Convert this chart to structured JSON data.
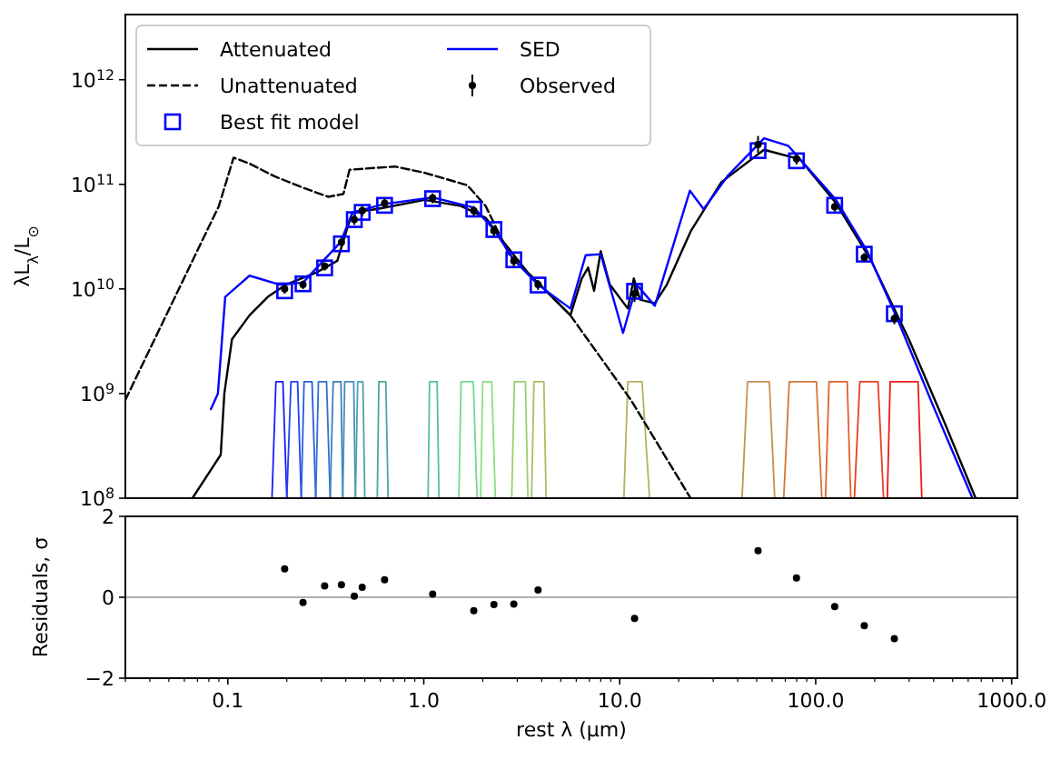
{
  "chart_data": [
    {
      "type": "line",
      "ylabel": "λL$_{λ}$/L$_{⊙}$",
      "log": "xy",
      "legend": "top left",
      "tick_labels": "y",
      "xlim": [
        0.03,
        1070
      ],
      "ylim": [
        100000000.0,
        4200000000000.0
      ],
      "yticks": [
        {
          "value": 100000000.0,
          "label": "10$^{8}$"
        },
        {
          "value": 1000000000.0,
          "label": "10$^{9}$"
        },
        {
          "value": 10000000000.0,
          "label": "10$^{10}$"
        },
        {
          "value": 100000000000.0,
          "label": "10$^{11}$"
        },
        {
          "value": 1000000000000.0,
          "label": "10$^{12}$"
        }
      ],
      "series": [
        {
          "name": "Attenuated",
          "color": "#000000",
          "line_style": "solid",
          "x": [
            0.066,
            0.092,
            0.096,
            0.105,
            0.129,
            0.16,
            0.198,
            0.282,
            0.362,
            0.403,
            0.433,
            0.575,
            1.01,
            1.55,
            2.07,
            2.56,
            3.4,
            4.2,
            5.6,
            6.4,
            6.9,
            7.4,
            8.0,
            8.9,
            11.0,
            11.8,
            12.7,
            15.1,
            17.4,
            23.1,
            33,
            54.5,
            83,
            127,
            192,
            299,
            458,
            655
          ],
          "values": [
            100000000.0,
            260000000.0,
            1000000000.0,
            3300000000.0,
            5600000000.0,
            8400000000.0,
            11000000000.0,
            14300000000.0,
            18600000000.0,
            36000000000.0,
            54000000000.0,
            58000000000.0,
            71000000000.0,
            62000000000.0,
            48000000000.0,
            28000000000.0,
            14300000000.0,
            9600000000.0,
            5600000000.0,
            12600000000.0,
            16000000000.0,
            9600000000.0,
            23000000000.0,
            11000000000.0,
            6500000000.0,
            12600000000.0,
            7900000000.0,
            7300000000.0,
            11000000000.0,
            36000000000.0,
            105000000000.0,
            214000000000.0,
            174000000000.0,
            66000000000.0,
            18600000000.0,
            3300000000.0,
            510000000.0,
            100000000.0
          ]
        },
        {
          "name": "Unattenuated",
          "color": "#000000",
          "line_style": "dashed",
          "x": [
            0.03,
            0.09,
            0.107,
            0.129,
            0.172,
            0.245,
            0.326,
            0.389,
            0.418,
            0.713,
            1.01,
            1.67,
            2.07,
            2.74,
            3.65,
            5.6,
            11.4,
            23
          ],
          "values": [
            870000000.0,
            62000000000.0,
            180000000000.0,
            158000000000.0,
            120000000000.0,
            92000000000.0,
            76000000000.0,
            81000000000.0,
            138000000000.0,
            148000000000.0,
            129000000000.0,
            98000000000.0,
            62000000000.0,
            21000000000.0,
            12600000000.0,
            5600000000.0,
            870000000.0,
            100000000.0
          ]
        },
        {
          "name": "Best fit model",
          "type": "scatter",
          "marker": "square",
          "color": "#0000ff",
          "x": [
            0.195,
            0.242,
            0.312,
            0.38,
            0.442,
            0.485,
            0.631,
            1.11,
            1.8,
            2.28,
            2.88,
            3.83,
            11.9,
            50.8,
            79.8,
            125,
            177,
            252
          ],
          "values": [
            9600000000.0,
            11200000000.0,
            15900000000.0,
            27000000000.0,
            46000000000.0,
            54000000000.0,
            63000000000.0,
            73000000000.0,
            58000000000.0,
            37000000000.0,
            19000000000.0,
            10900000000.0,
            9500000000.0,
            210000000000.0,
            168000000000.0,
            63000000000.0,
            21500000000.0,
            5800000000.0
          ]
        },
        {
          "name": "SED",
          "color": "#0000ff",
          "line_style": "solid",
          "x": [
            0.082,
            0.089,
            0.097,
            0.129,
            0.184,
            0.242,
            0.376,
            0.433,
            0.631,
            1.11,
            1.8,
            2.28,
            2.88,
            3.83,
            5.6,
            6.7,
            8.0,
            10.4,
            12.2,
            15.1,
            22.8,
            26.8,
            35.5,
            54.5,
            72.4,
            127,
            183,
            261,
            398,
            631
          ],
          "values": [
            710000000.0,
            1000000000.0,
            8400000000.0,
            13400000000.0,
            11000000000.0,
            11500000000.0,
            28000000000.0,
            54000000000.0,
            65000000000.0,
            75000000000.0,
            60000000000.0,
            37000000000.0,
            19000000000.0,
            11000000000.0,
            6500000000.0,
            21000000000.0,
            21500000000.0,
            3800000000.0,
            11000000000.0,
            6900000000.0,
            87000000000.0,
            58000000000.0,
            120000000000.0,
            276000000000.0,
            234000000000.0,
            71000000000.0,
            23000000000.0,
            5200000000.0,
            760000000.0,
            100000000.0
          ]
        },
        {
          "name": "Observed",
          "type": "scatter",
          "marker": "circle",
          "color": "#000000",
          "x": [
            0.195,
            0.242,
            0.312,
            0.38,
            0.442,
            0.485,
            0.631,
            1.11,
            1.8,
            2.28,
            2.88,
            3.83,
            11.9,
            50.8,
            79.8,
            125,
            177,
            252
          ],
          "values": [
            10000000000.0,
            11000000000.0,
            16500000000.0,
            28000000000.0,
            46000000000.0,
            56000000000.0,
            66000000000.0,
            74000000000.0,
            56000000000.0,
            36000000000.0,
            18500000000.0,
            11000000000.0,
            9000000000.0,
            240000000000.0,
            175000000000.0,
            61000000000.0,
            20000000000.0,
            5200000000.0
          ],
          "errors": [
            [
              9000000000.0,
              11000000000.0
            ],
            [
              10000000000.0,
              12000000000.0
            ],
            [
              15000000000.0,
              18000000000.0
            ],
            [
              25000000000.0,
              31000000000.0
            ],
            [
              41000000000.0,
              51000000000.0
            ],
            [
              50000000000.0,
              62000000000.0
            ],
            [
              59000000000.0,
              73000000000.0
            ],
            [
              66000000000.0,
              82000000000.0
            ],
            [
              50000000000.0,
              62000000000.0
            ],
            [
              32000000000.0,
              40000000000.0
            ],
            [
              16500000000.0,
              20500000000.0
            ],
            [
              9800000000.0,
              12200000000.0
            ],
            [
              7500000000.0,
              12000000000.0
            ],
            [
              200000000000.0,
              290000000000.0
            ],
            [
              155000000000.0,
              195000000000.0
            ],
            [
              55000000000.0,
              67000000000.0
            ],
            [
              18000000000.0,
              22000000000.0
            ],
            [
              4600000000.0,
              5800000000.0
            ]
          ]
        },
        {
          "color": "#1a1aff",
          "x": [
            0.168,
            0.176,
            0.191,
            0.2
          ],
          "values": [
            100000000.0,
            1300000000.0,
            1300000000.0,
            100000000.0
          ]
        },
        {
          "color": "#2040f0",
          "x": [
            0.2,
            0.21,
            0.227,
            0.237
          ],
          "values": [
            100000000.0,
            1300000000.0,
            1300000000.0,
            100000000.0
          ]
        },
        {
          "color": "#2a5ce0",
          "x": [
            0.237,
            0.245,
            0.269,
            0.281
          ],
          "values": [
            100000000.0,
            1300000000.0,
            1300000000.0,
            100000000.0
          ]
        },
        {
          "color": "#3070d0",
          "x": [
            0.281,
            0.29,
            0.319,
            0.333
          ],
          "values": [
            100000000.0,
            1300000000.0,
            1300000000.0,
            100000000.0
          ]
        },
        {
          "color": "#3a80c0",
          "x": [
            0.333,
            0.345,
            0.378,
            0.386
          ],
          "values": [
            100000000.0,
            1300000000.0,
            1300000000.0,
            100000000.0
          ]
        },
        {
          "color": "#4590b8",
          "x": [
            0.386,
            0.395,
            0.439,
            0.448
          ],
          "values": [
            100000000.0,
            1300000000.0,
            1300000000.0,
            100000000.0
          ]
        },
        {
          "color": "#50a0b0",
          "x": [
            0.448,
            0.46,
            0.489,
            0.5
          ],
          "values": [
            100000000.0,
            1300000000.0,
            1300000000.0,
            100000000.0
          ]
        },
        {
          "color": "#4aa8a0",
          "x": [
            0.579,
            0.59,
            0.64,
            0.658
          ],
          "values": [
            100000000.0,
            1300000000.0,
            1300000000.0,
            100000000.0
          ]
        },
        {
          "color": "#50c0a0",
          "x": [
            1.052,
            1.07,
            1.17,
            1.196
          ],
          "values": [
            100000000.0,
            1300000000.0,
            1300000000.0,
            100000000.0
          ]
        },
        {
          "color": "#70d890",
          "x": [
            1.51,
            1.55,
            1.79,
            1.87
          ],
          "values": [
            100000000.0,
            1300000000.0,
            1300000000.0,
            100000000.0
          ]
        },
        {
          "color": "#88e080",
          "x": [
            1.95,
            2.0,
            2.22,
            2.32
          ],
          "values": [
            100000000.0,
            1300000000.0,
            1300000000.0,
            100000000.0
          ]
        },
        {
          "color": "#98d070",
          "x": [
            2.81,
            2.9,
            3.3,
            3.4
          ],
          "values": [
            100000000.0,
            1300000000.0,
            1300000000.0,
            100000000.0
          ]
        },
        {
          "color": "#a8c060",
          "x": [
            3.55,
            3.65,
            4.1,
            4.21
          ],
          "values": [
            100000000.0,
            1300000000.0,
            1300000000.0,
            100000000.0
          ]
        },
        {
          "color": "#b8b060",
          "x": [
            10.5,
            11.0,
            13.0,
            14.2
          ],
          "values": [
            100000000.0,
            1300000000.0,
            1300000000.0,
            100000000.0
          ]
        },
        {
          "color": "#c89050",
          "x": [
            42.1,
            44.9,
            58.0,
            61.8
          ],
          "values": [
            100000000.0,
            1300000000.0,
            1300000000.0,
            100000000.0
          ]
        },
        {
          "color": "#d07838",
          "x": [
            68.7,
            73.3,
            100.9,
            107.5
          ],
          "values": [
            100000000.0,
            1300000000.0,
            1300000000.0,
            100000000.0
          ]
        },
        {
          "color": "#e06030",
          "x": [
            112.2,
            117,
            144.8,
            151
          ],
          "values": [
            100000000.0,
            1300000000.0,
            1300000000.0,
            100000000.0
          ]
        },
        {
          "color": "#e84020",
          "x": [
            157.6,
            168,
            208,
            222
          ],
          "values": [
            100000000.0,
            1300000000.0,
            1300000000.0,
            100000000.0
          ]
        },
        {
          "color": "#f01818",
          "x": [
            232,
            240,
            333,
            348
          ],
          "values": [
            100000000.0,
            1300000000.0,
            1300000000.0,
            100000000.0
          ]
        }
      ]
    },
    {
      "type": "scatter",
      "xlabel": "rest λ (µm)",
      "ylabel": "Residuals, σ",
      "log": "x",
      "marker": "circle",
      "xlim": [
        0.03,
        1070
      ],
      "ylim": [
        -2,
        2
      ],
      "xticks": [
        {
          "value": 0.03,
          "label": null
        },
        {
          "value": 0.04,
          "label": null
        },
        {
          "value": 0.05,
          "label": null
        },
        {
          "value": 0.06,
          "label": null
        },
        {
          "value": 0.07,
          "label": null
        },
        {
          "value": 0.08,
          "label": null
        },
        {
          "value": 0.09,
          "label": null
        },
        0.1,
        {
          "value": 0.2,
          "label": null
        },
        {
          "value": 0.3,
          "label": null
        },
        {
          "value": 0.4,
          "label": null
        },
        {
          "value": 0.5,
          "label": null
        },
        {
          "value": 0.6,
          "label": null
        },
        {
          "value": 0.7,
          "label": null
        },
        {
          "value": 0.8,
          "label": null
        },
        {
          "value": 0.9,
          "label": null
        },
        {
          "value": 1,
          "label": "1.0"
        },
        {
          "value": 2,
          "label": null
        },
        {
          "value": 3,
          "label": null
        },
        {
          "value": 4,
          "label": null
        },
        {
          "value": 5,
          "label": null
        },
        {
          "value": 6,
          "label": null
        },
        {
          "value": 7,
          "label": null
        },
        {
          "value": 8,
          "label": null
        },
        {
          "value": 9,
          "label": null
        },
        {
          "value": 10,
          "label": "10.0"
        },
        {
          "value": 20,
          "label": null
        },
        {
          "value": 30,
          "label": null
        },
        {
          "value": 40,
          "label": null
        },
        {
          "value": 50,
          "label": null
        },
        {
          "value": 60,
          "label": null
        },
        {
          "value": 70,
          "label": null
        },
        {
          "value": 80,
          "label": null
        },
        {
          "value": 90,
          "label": null
        },
        {
          "value": 100,
          "label": "100.0"
        },
        {
          "value": 200,
          "label": null
        },
        {
          "value": 300,
          "label": null
        },
        {
          "value": 400,
          "label": null
        },
        {
          "value": 500,
          "label": null
        },
        {
          "value": 600,
          "label": null
        },
        {
          "value": 700,
          "label": null
        },
        {
          "value": 800,
          "label": null
        },
        {
          "value": 900,
          "label": null
        },
        {
          "value": 1000,
          "label": "1000.0"
        }
      ],
      "yticks": [
        {
          "value": -2,
          "label": "−2"
        },
        0,
        2
      ],
      "ref_lines": [
        {
          "axis": "y",
          "value": 0,
          "color": "#b0b0b0"
        }
      ],
      "x": [
        0.195,
        0.242,
        0.312,
        0.38,
        0.442,
        0.485,
        0.631,
        1.11,
        1.8,
        2.28,
        2.88,
        3.83,
        11.9,
        50.8,
        79.8,
        125,
        177,
        252
      ],
      "values": [
        0.7,
        -0.13,
        0.28,
        0.31,
        0.03,
        0.25,
        0.43,
        0.08,
        -0.33,
        -0.18,
        -0.17,
        0.18,
        -0.52,
        1.15,
        0.48,
        -0.23,
        -0.7,
        -1.02
      ],
      "color": "#000000"
    }
  ]
}
